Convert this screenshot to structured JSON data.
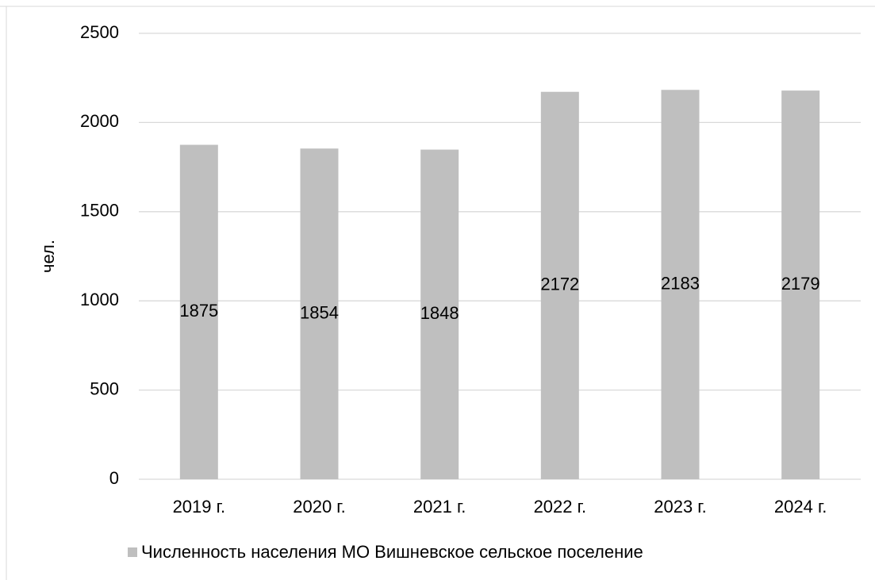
{
  "chart_data": {
    "type": "bar",
    "y_label": "чел.",
    "categories": [
      "2019 г.",
      "2020 г.",
      "2021 г.",
      "2022 г.",
      "2023 г.",
      "2024 г."
    ],
    "series": [
      {
        "name": "Численность населения МО Вишневское сельское поселение",
        "color": "#bfbfbf",
        "values": [
          1875,
          1854,
          1848,
          2172,
          2183,
          2179
        ]
      }
    ],
    "ylim": [
      0,
      2500
    ],
    "yticks": [
      0,
      500,
      1000,
      1500,
      2000,
      2500
    ],
    "grid": true,
    "data_labels": true,
    "legend": "bottom"
  }
}
